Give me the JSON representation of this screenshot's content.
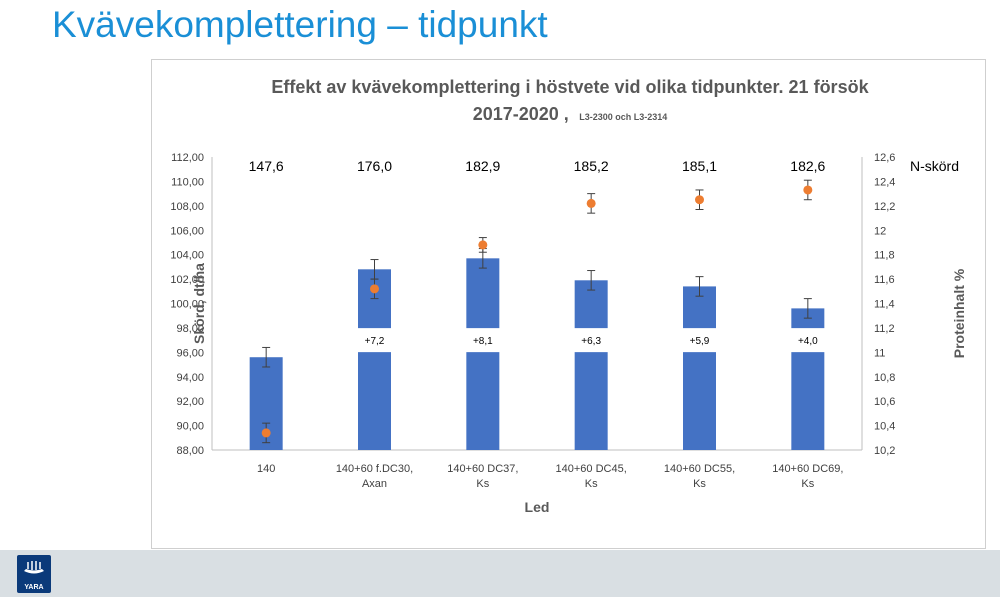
{
  "page": {
    "title": "Kvävekomplettering – tidpunkt"
  },
  "footer": {
    "logo_text": "YARA",
    "background": "#d9dfe3",
    "logo_color": "#0b3a7a"
  },
  "chart_data": {
    "type": "bar",
    "title_line1": "Effekt av kvävekomplettering i höstvete vid olika tidpunkter. 21 försök",
    "title_line2": "2017-2020 ,",
    "title_line2_small": "L3-2300 och L3-2314",
    "xlabel": "Led",
    "ylabel": "Skörd, dt/ha",
    "y2label": "Proteinhalt %",
    "n_label": "N-skörd",
    "categories": [
      [
        "140"
      ],
      [
        "140+60 f.DC30,",
        "Axan"
      ],
      [
        "140+60 DC37,",
        "Ks"
      ],
      [
        "140+60 DC45,",
        "Ks"
      ],
      [
        "140+60 DC55,",
        "Ks"
      ],
      [
        "140+60 DC69,",
        "Ks"
      ]
    ],
    "ylim": [
      88,
      112
    ],
    "yticks": [
      "88,00",
      "90,00",
      "92,00",
      "94,00",
      "96,00",
      "98,00",
      "100,00",
      "102,00",
      "104,00",
      "106,00",
      "108,00",
      "110,00",
      "112,00"
    ],
    "y2lim": [
      10.2,
      12.6
    ],
    "y2ticks": [
      "10,2",
      "10,4",
      "10,6",
      "10,8",
      "11",
      "11,2",
      "11,4",
      "11,6",
      "11,8",
      "12",
      "12,2",
      "12,4",
      "12,6"
    ],
    "series": [
      {
        "name": "Skörd",
        "axis": "left",
        "values": [
          95.6,
          102.8,
          103.7,
          101.9,
          101.4,
          99.6
        ],
        "errors": [
          0.8,
          0.8,
          0.8,
          0.8,
          0.8,
          0.8
        ],
        "color": "#4472c4"
      },
      {
        "name": "Proteinhalt",
        "axis": "right",
        "values": [
          10.34,
          11.52,
          11.88,
          12.22,
          12.25,
          12.33
        ],
        "errors": [
          0.08,
          0.08,
          0.06,
          0.08,
          0.08,
          0.08
        ],
        "color": "#ed7d31"
      }
    ],
    "n_yield": [
      "147,6",
      "176,0",
      "182,9",
      "185,2",
      "185,1",
      "182,6"
    ],
    "differences": [
      "",
      "+7,2",
      "+8,1",
      "+6,3",
      "+5,9",
      "+4,0"
    ],
    "difference_label_level": 97,
    "grid": false
  }
}
